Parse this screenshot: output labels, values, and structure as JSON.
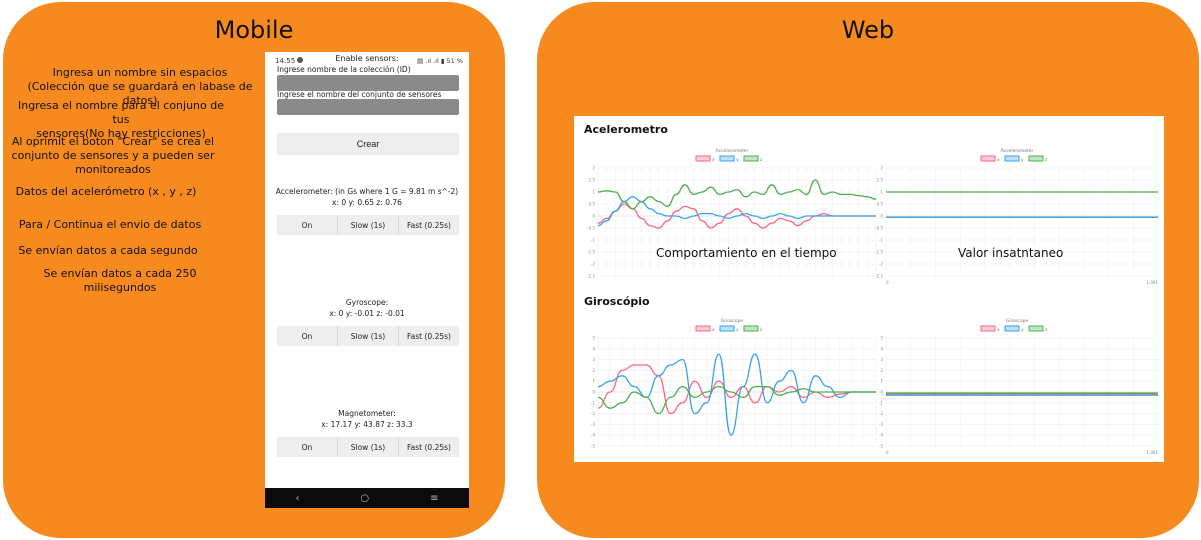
{
  "mobile": {
    "title": "Mobile",
    "annotations": [
      "Ingresa un nombre sin espacios\n(Colección que se guardará en labase de datos)",
      "Ingresa el nombre para el conjuno de tus\nsensores(No hay restricciones)",
      "Al oprimit el boton \"Crear\" se crea el\nconjunto de sensores y a pueden ser\nmonitoreados",
      "Datos del acelerómetro (x , y , z)",
      "Para / Continua el envio de datos",
      "Se envían datos a cada segundo",
      "Se envían datos a cada 250\nmilisegundos"
    ],
    "phone": {
      "time": "14:55",
      "header": "Enable sensors:",
      "status_icons": "▤ .ıl .ıl ▮ 51 %",
      "collection_label": "Ingrese nombre de la colección (ID)",
      "sensorset_label": "Ingrese el nombre del conjunto de sensores",
      "create_button": "Crear",
      "accelerometer_title": "Accelerometer: (in Gs where 1 G = 9.81 m s^-2)",
      "accelerometer_values": "x: 0 y: 0.65 z: 0.76",
      "gyroscope_title": "Gyroscope:",
      "gyroscope_values": "x: 0 y: -0.01 z: -0.01",
      "magnetometer_title": "Magnetometer:",
      "magnetometer_values": "x: 17.17 y: 43.87 z: 33.3",
      "btn_on": "On",
      "btn_slow": "Slow (1s)",
      "btn_fast": "Fast (0.25s)",
      "nav": [
        "‹",
        "○",
        "≡"
      ]
    }
  },
  "web": {
    "title": "Web",
    "accel_section": "Acelerometro",
    "gyro_section": "Giroscópio",
    "overlay_time": "Comportamiento en el tiempo",
    "overlay_instant": "Valor insatntaneo"
  },
  "colors": {
    "x": "#ff6384",
    "y": "#36a2eb",
    "z": "#4caf50",
    "panel": "#f78a1e"
  },
  "chart_data": [
    {
      "type": "line",
      "title": "Accelerometer",
      "legend": [
        "x",
        "y",
        "z"
      ],
      "ylim": [
        -2.5,
        2.0
      ],
      "yticks": [
        2.0,
        1.5,
        1.0,
        0.5,
        0,
        -0.5,
        -1.0,
        -1.5,
        -2.0,
        -2.5
      ],
      "series": [
        {
          "name": "x",
          "values": [
            -0.3,
            -0.1,
            0.2,
            0.5,
            0.3,
            -0.1,
            -0.4,
            -0.5,
            -0.2,
            0.2,
            0.4,
            0.3,
            -0.2,
            -0.5,
            -0.3,
            0.1,
            0.3,
            0.0,
            -0.3,
            -0.5,
            -0.3,
            -0.1,
            -0.2,
            -0.4,
            -0.2,
            0.0,
            0.1,
            0.0,
            0.0,
            0.0,
            0.0,
            0.0,
            0.0
          ]
        },
        {
          "name": "y",
          "values": [
            -0.4,
            -0.2,
            0.2,
            0.6,
            0.8,
            0.6,
            0.3,
            0.1,
            0.0,
            0.0,
            -0.1,
            0.0,
            0.1,
            0.1,
            0.0,
            -0.1,
            0.0,
            0.1,
            0.0,
            -0.1,
            0.0,
            0.1,
            0.0,
            -0.1,
            0.0,
            0.0,
            0.0,
            0.0,
            0.0,
            0.0,
            0.0,
            0.0,
            0.0
          ]
        },
        {
          "name": "z",
          "values": [
            1.0,
            1.05,
            1.0,
            0.6,
            0.3,
            0.6,
            0.8,
            0.6,
            0.4,
            0.9,
            1.3,
            0.9,
            1.0,
            1.2,
            0.9,
            1.0,
            1.1,
            0.8,
            1.0,
            0.9,
            1.3,
            0.9,
            1.0,
            1.1,
            0.9,
            1.5,
            0.9,
            1.0,
            0.9,
            0.9,
            0.85,
            0.8,
            0.7
          ]
        }
      ]
    },
    {
      "type": "line",
      "title": "Accelerometer",
      "legend": [
        "x",
        "y",
        "z"
      ],
      "ylim": [
        -2.5,
        2.0
      ],
      "yticks": [
        2.0,
        1.5,
        1.0,
        0.5,
        0,
        -0.5,
        -1.0,
        -1.5,
        -2.0,
        -2.5
      ],
      "xticks": [
        "0",
        "1.001"
      ],
      "series": [
        {
          "name": "x",
          "values": [
            -0.05,
            -0.05
          ]
        },
        {
          "name": "y",
          "values": [
            -0.05,
            -0.05
          ]
        },
        {
          "name": "z",
          "values": [
            1.0,
            1.0
          ]
        }
      ]
    },
    {
      "type": "line",
      "title": "Giroscope",
      "legend": [
        "x",
        "y",
        "z"
      ],
      "ylim": [
        -5,
        5
      ],
      "yticks": [
        5,
        4,
        3,
        2,
        1,
        0,
        -1,
        -2,
        -3,
        -4,
        -5
      ],
      "series": [
        {
          "name": "x",
          "values": [
            -1.5,
            0.0,
            2.0,
            2.5,
            2.5,
            1.5,
            -2.0,
            -1.0,
            1.0,
            -0.5,
            1.0,
            -0.5,
            0.5,
            -1.0,
            0.5,
            0.0,
            0.5,
            -0.5,
            0.0,
            -0.5,
            -0.2,
            0.0,
            0.0,
            0.0
          ]
        },
        {
          "name": "y",
          "values": [
            0.5,
            1.0,
            1.5,
            0.5,
            -0.5,
            1.5,
            2.5,
            3.0,
            -2.0,
            -1.0,
            3.5,
            -4.0,
            0.5,
            3.5,
            -1.0,
            1.0,
            2.0,
            -1.0,
            1.5,
            0.5,
            -0.5,
            0.0,
            0.0,
            0.0
          ]
        },
        {
          "name": "z",
          "values": [
            -0.5,
            -1.5,
            -1.0,
            0.0,
            -0.5,
            -2.0,
            -0.5,
            0.5,
            -0.5,
            0.0,
            0.5,
            0.0,
            -0.5,
            0.5,
            0.5,
            -0.3,
            0.0,
            0.3,
            0.0,
            0.0,
            0.0,
            0.0,
            0.0,
            0.0
          ]
        }
      ]
    },
    {
      "type": "line",
      "title": "Giroscope",
      "legend": [
        "x",
        "y",
        "z"
      ],
      "ylim": [
        -5,
        5
      ],
      "yticks": [
        5,
        4,
        3,
        2,
        1,
        0,
        -1,
        -2,
        -3,
        -4,
        -5
      ],
      "xticks": [
        "0",
        "1.001"
      ],
      "series": [
        {
          "name": "x",
          "values": [
            -0.2,
            -0.2
          ]
        },
        {
          "name": "y",
          "values": [
            -0.3,
            -0.3
          ]
        },
        {
          "name": "z",
          "values": [
            -0.1,
            -0.1
          ]
        }
      ]
    }
  ]
}
